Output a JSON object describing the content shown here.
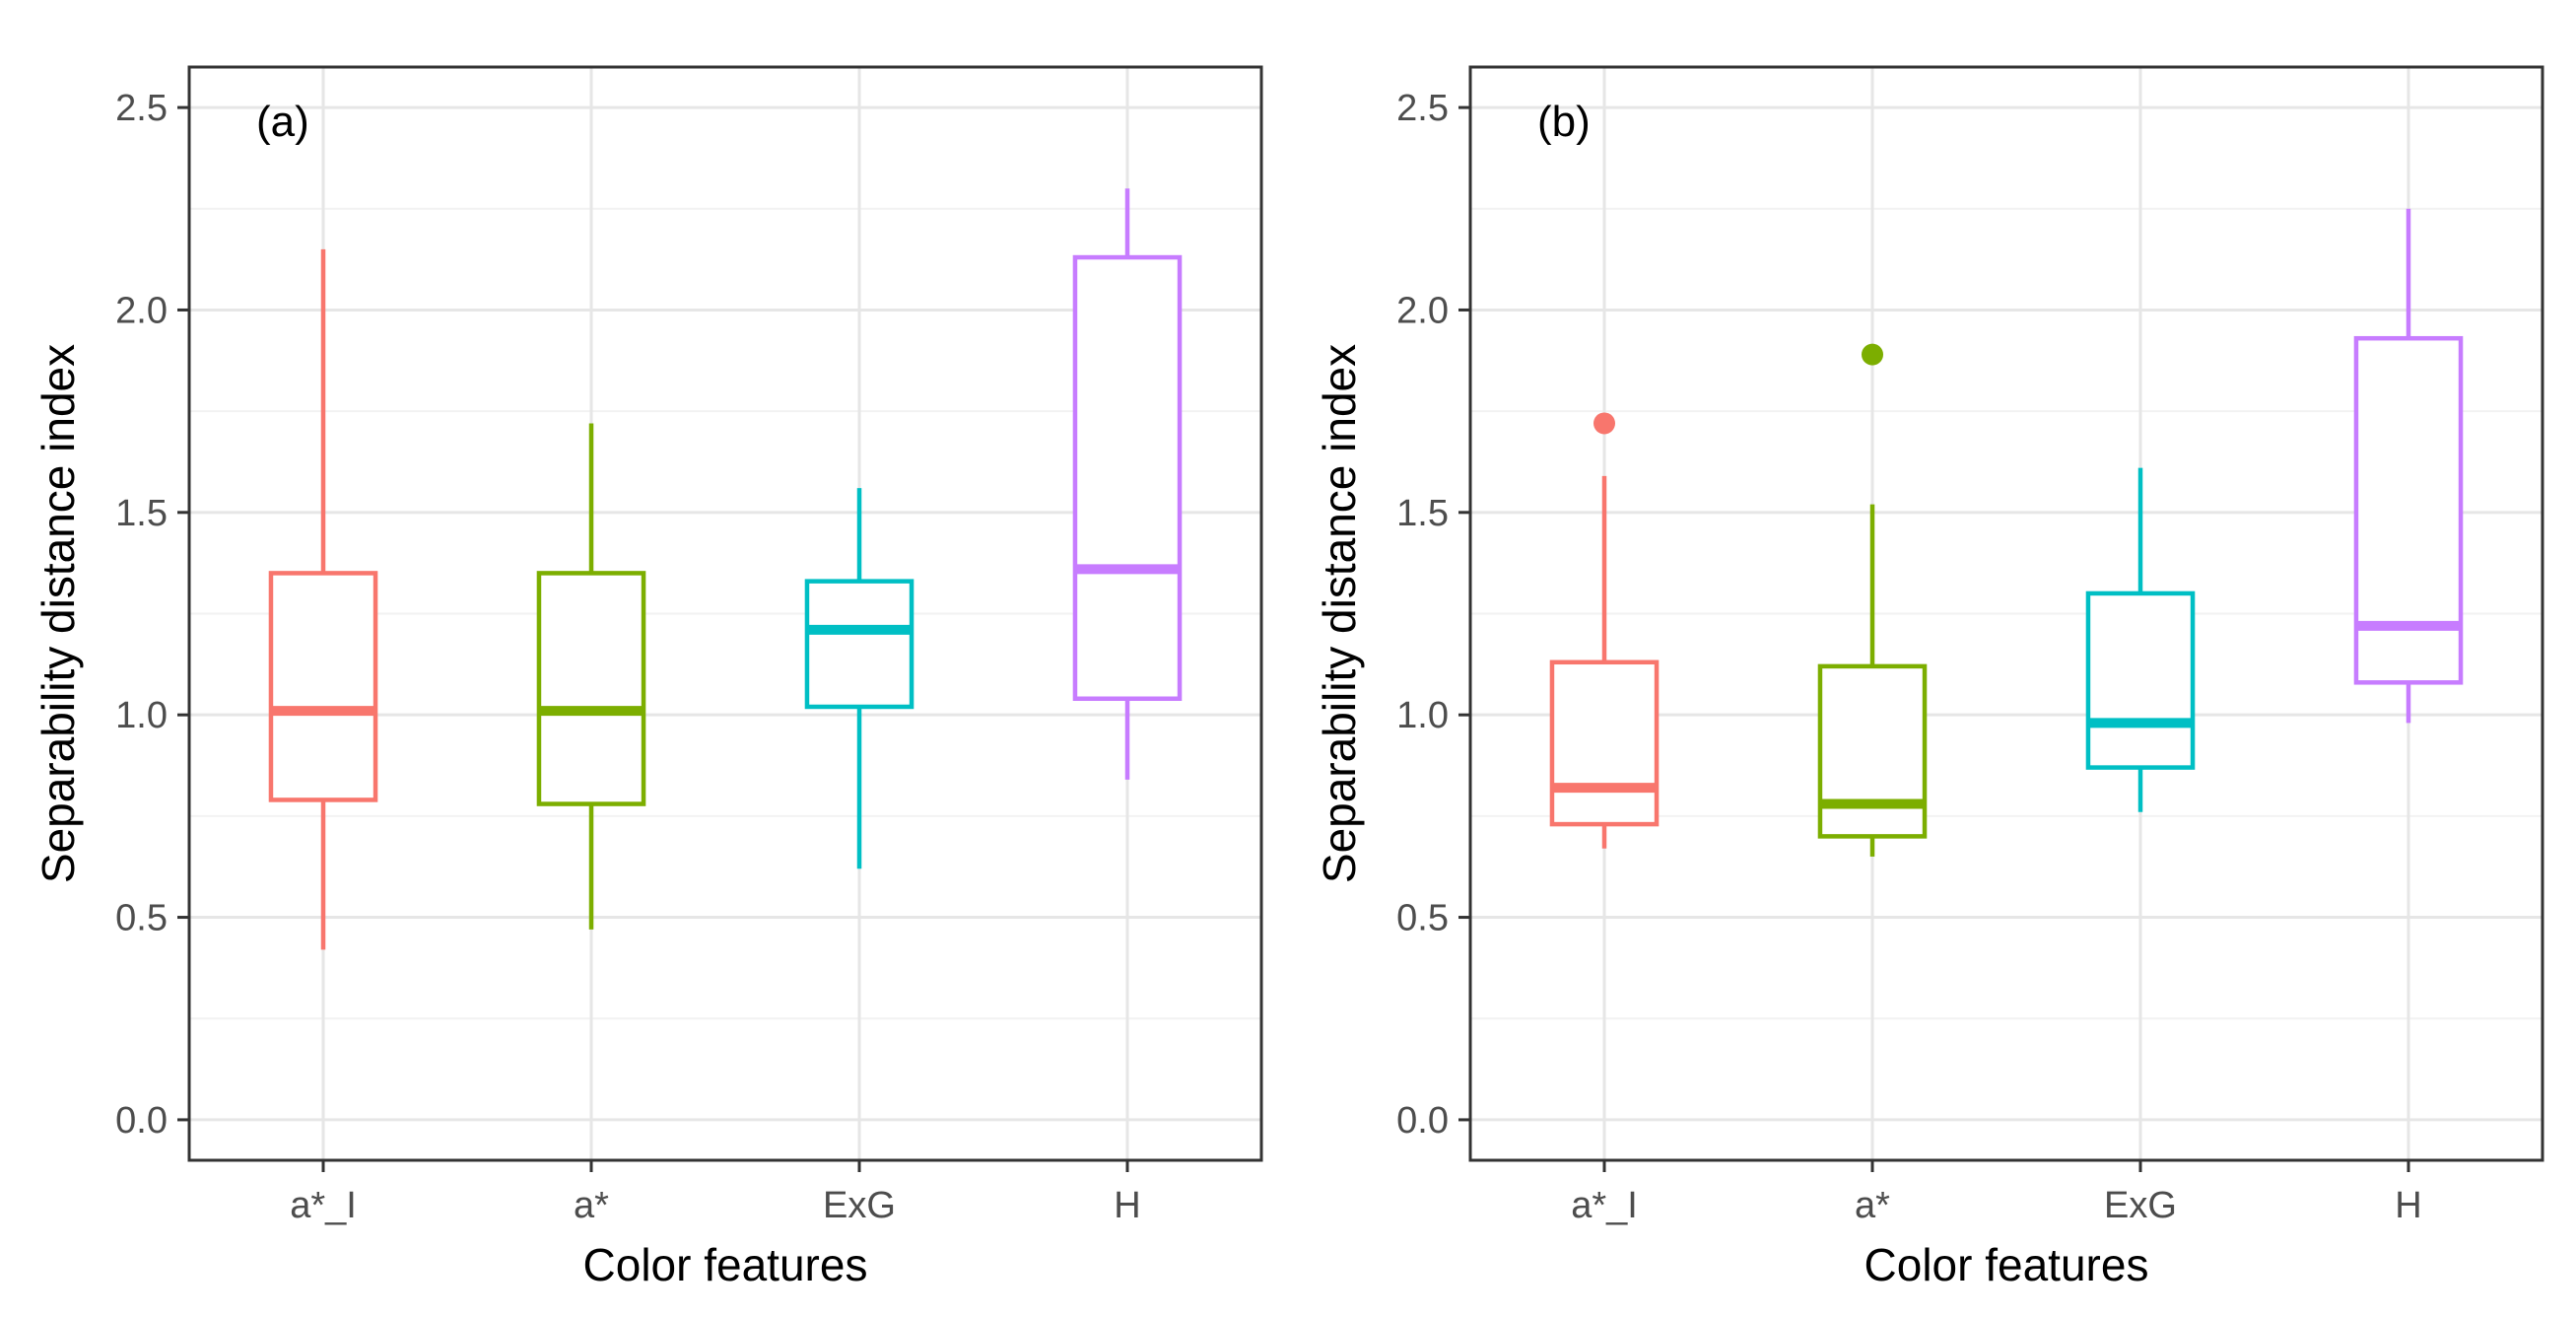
{
  "chart_data": [
    {
      "type": "boxplot",
      "panel_label": "(a)",
      "xlabel": "Color features",
      "ylabel": "Separability distance index",
      "ylim": [
        -0.1,
        2.6
      ],
      "yticks": [
        "0.0",
        "0.5",
        "1.0",
        "1.5",
        "2.0",
        "2.5"
      ],
      "yticks_values": [
        0,
        0.5,
        1.0,
        1.5,
        2.0,
        2.5
      ],
      "grid": true,
      "categories": [
        "a*_I",
        "a*",
        "ExG",
        "H"
      ],
      "boxes": [
        {
          "name": "a*_I",
          "color": "#F8766D",
          "whisker_low": 0.42,
          "q1": 0.79,
          "median": 1.01,
          "q3": 1.35,
          "whisker_high": 2.15,
          "outliers": []
        },
        {
          "name": "a*",
          "color": "#7CAE00",
          "whisker_low": 0.47,
          "q1": 0.78,
          "median": 1.01,
          "q3": 1.35,
          "whisker_high": 1.72,
          "outliers": []
        },
        {
          "name": "ExG",
          "color": "#00BFC4",
          "whisker_low": 0.62,
          "q1": 1.02,
          "median": 1.21,
          "q3": 1.33,
          "whisker_high": 1.56,
          "outliers": []
        },
        {
          "name": "H",
          "color": "#C77CFF",
          "whisker_low": 0.84,
          "q1": 1.04,
          "median": 1.36,
          "q3": 2.13,
          "whisker_high": 2.3,
          "outliers": []
        }
      ]
    },
    {
      "type": "boxplot",
      "panel_label": "(b)",
      "xlabel": "Color features",
      "ylabel": "Separability distance index",
      "ylim": [
        -0.1,
        2.6
      ],
      "yticks": [
        "0.0",
        "0.5",
        "1.0",
        "1.5",
        "2.0",
        "2.5"
      ],
      "yticks_values": [
        0,
        0.5,
        1.0,
        1.5,
        2.0,
        2.5
      ],
      "grid": true,
      "categories": [
        "a*_I",
        "a*",
        "ExG",
        "H"
      ],
      "boxes": [
        {
          "name": "a*_I",
          "color": "#F8766D",
          "whisker_low": 0.67,
          "q1": 0.73,
          "median": 0.82,
          "q3": 1.13,
          "whisker_high": 1.59,
          "outliers": [
            1.72
          ]
        },
        {
          "name": "a*",
          "color": "#7CAE00",
          "whisker_low": 0.65,
          "q1": 0.7,
          "median": 0.78,
          "q3": 1.12,
          "whisker_high": 1.52,
          "outliers": [
            1.89
          ]
        },
        {
          "name": "ExG",
          "color": "#00BFC4",
          "whisker_low": 0.76,
          "q1": 0.87,
          "median": 0.98,
          "q3": 1.3,
          "whisker_high": 1.61,
          "outliers": []
        },
        {
          "name": "H",
          "color": "#C77CFF",
          "whisker_low": 0.98,
          "q1": 1.08,
          "median": 1.22,
          "q3": 1.93,
          "whisker_high": 2.25,
          "outliers": []
        }
      ]
    }
  ]
}
